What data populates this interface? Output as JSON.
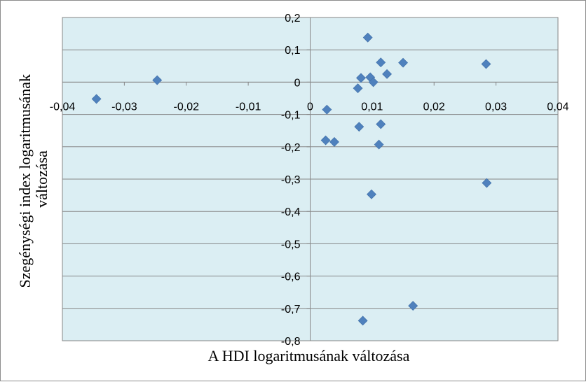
{
  "chart_data": {
    "type": "scatter",
    "title": "",
    "xlabel": "A HDI logaritmusának változása",
    "ylabel_lines": [
      "Szegénységi index logaritmusának",
      "változása"
    ],
    "xlim": [
      -0.04,
      0.04
    ],
    "ylim": [
      -0.8,
      0.2
    ],
    "x_ticks": [
      -0.04,
      -0.03,
      -0.02,
      -0.01,
      0,
      0.01,
      0.02,
      0.03,
      0.04
    ],
    "x_tick_labels": [
      "-0,04",
      "-0,03",
      "-0,02",
      "-0,01",
      "0",
      "0,01",
      "0,02",
      "0,03",
      "0,04"
    ],
    "y_ticks": [
      0.2,
      0.1,
      0,
      -0.1,
      -0.2,
      -0.3,
      -0.4,
      -0.5,
      -0.6,
      -0.7,
      -0.8
    ],
    "y_tick_labels": [
      "0,2",
      "0,1",
      "0",
      "-0,1",
      "-0,2",
      "-0,3",
      "-0,4",
      "-0,5",
      "-0,6",
      "-0,7",
      "-0,8"
    ],
    "grid": "horizontal",
    "legend": "none",
    "colors": {
      "plot_background": "#dbeef3",
      "marker": "#4f81bd",
      "gridline": "#868686",
      "axis": "#868686"
    },
    "marker_shape": "diamond",
    "points": [
      {
        "x": -0.0345,
        "y": -0.052
      },
      {
        "x": -0.0247,
        "y": 0.006
      },
      {
        "x": 0.0093,
        "y": 0.138
      },
      {
        "x": 0.0114,
        "y": 0.061
      },
      {
        "x": 0.015,
        "y": 0.06
      },
      {
        "x": 0.0284,
        "y": 0.056
      },
      {
        "x": 0.0124,
        "y": 0.025
      },
      {
        "x": 0.0082,
        "y": 0.013
      },
      {
        "x": 0.0097,
        "y": 0.015
      },
      {
        "x": 0.0102,
        "y": 0.0
      },
      {
        "x": 0.0077,
        "y": -0.019
      },
      {
        "x": 0.0027,
        "y": -0.085
      },
      {
        "x": 0.0079,
        "y": -0.138
      },
      {
        "x": 0.0114,
        "y": -0.13
      },
      {
        "x": 0.0025,
        "y": -0.18
      },
      {
        "x": 0.0039,
        "y": -0.185
      },
      {
        "x": 0.0111,
        "y": -0.193
      },
      {
        "x": 0.0099,
        "y": -0.347
      },
      {
        "x": 0.0285,
        "y": -0.312
      },
      {
        "x": 0.0166,
        "y": -0.692
      },
      {
        "x": 0.0085,
        "y": -0.738
      }
    ]
  }
}
